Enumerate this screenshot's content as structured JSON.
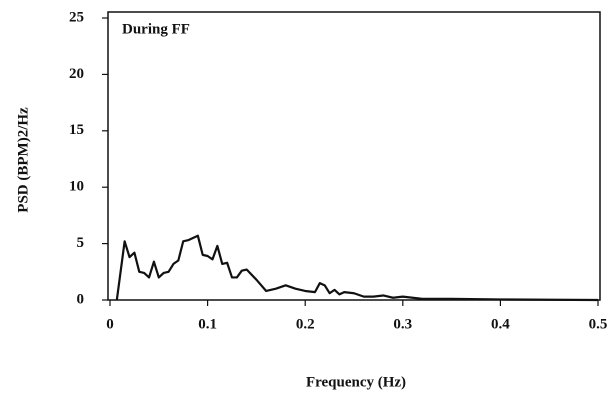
{
  "chart_data": {
    "type": "line",
    "annotation": "During FF",
    "x_label": "Frequency (Hz)",
    "y_label": "PSD (BPM)2/Hz",
    "x": [
      0.007,
      0.015,
      0.02,
      0.025,
      0.03,
      0.035,
      0.04,
      0.045,
      0.05,
      0.055,
      0.06,
      0.065,
      0.07,
      0.075,
      0.08,
      0.085,
      0.09,
      0.095,
      0.1,
      0.105,
      0.11,
      0.115,
      0.12,
      0.125,
      0.13,
      0.135,
      0.14,
      0.15,
      0.16,
      0.17,
      0.18,
      0.19,
      0.2,
      0.21,
      0.215,
      0.22,
      0.225,
      0.23,
      0.235,
      0.24,
      0.25,
      0.26,
      0.27,
      0.28,
      0.29,
      0.3,
      0.32,
      0.35,
      0.4,
      0.45,
      0.5
    ],
    "series": [
      {
        "color": "#111111",
        "values": [
          0,
          5.2,
          3.8,
          4.2,
          2.5,
          2.4,
          2.0,
          3.4,
          2.0,
          2.4,
          2.5,
          3.2,
          3.5,
          5.2,
          5.3,
          5.5,
          5.7,
          4.0,
          3.9,
          3.6,
          4.8,
          3.2,
          3.3,
          2.0,
          2.0,
          2.6,
          2.7,
          1.8,
          0.8,
          1.0,
          1.3,
          1.0,
          0.8,
          0.7,
          1.5,
          1.3,
          0.6,
          0.9,
          0.5,
          0.7,
          0.6,
          0.3,
          0.3,
          0.4,
          0.2,
          0.3,
          0.1,
          0.1,
          0.05,
          0.02,
          0
        ]
      }
    ],
    "xlim": [
      0,
      0.5
    ],
    "xticks": [
      0,
      0.1,
      0.2,
      0.3,
      0.4,
      0.5
    ],
    "ylim": [
      0,
      25
    ],
    "yticks": [
      0,
      5,
      10,
      15,
      20,
      25
    ]
  }
}
